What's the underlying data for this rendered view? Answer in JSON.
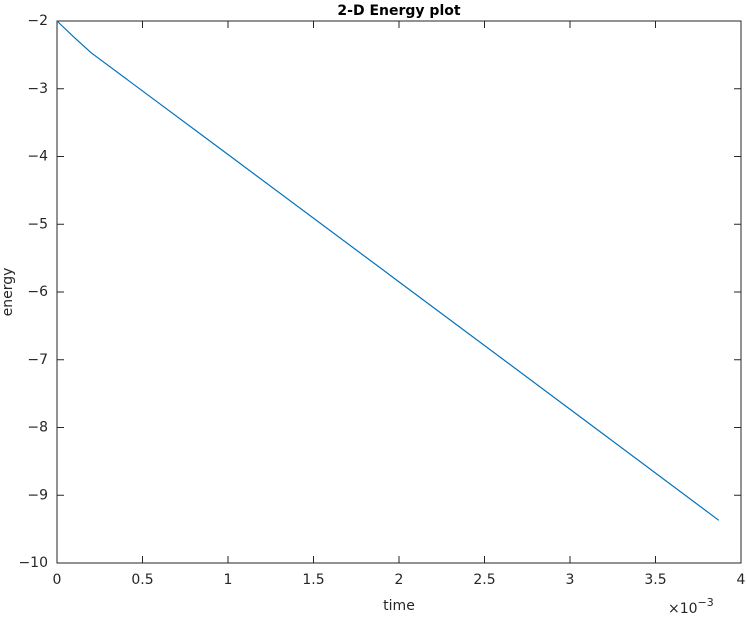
{
  "chart_data": {
    "type": "line",
    "title": "2-D Energy plot",
    "xlabel": "time",
    "ylabel": "energy",
    "x_multiplier": {
      "base": "×10",
      "exponent": "−3"
    },
    "x": [
      0,
      0.1,
      0.2,
      1,
      2,
      3,
      3.87
    ],
    "series": [
      {
        "name": "energy",
        "color": "#0072bd",
        "values": [
          -2,
          -2.24,
          -2.47,
          -3.97,
          -5.85,
          -7.73,
          -9.37
        ]
      }
    ],
    "xlim": [
      0,
      4
    ],
    "xticks": [
      0,
      0.5,
      1,
      1.5,
      2,
      2.5,
      3,
      3.5,
      4
    ],
    "ylim": [
      -10,
      -2
    ],
    "yticks": [
      {
        "value": -10,
        "label": "−10"
      },
      {
        "value": -9,
        "label": "−9"
      },
      {
        "value": -8,
        "label": "−8"
      },
      {
        "value": -7,
        "label": "−7"
      },
      {
        "value": -6,
        "label": "−6"
      },
      {
        "value": -5,
        "label": "−5"
      },
      {
        "value": -4,
        "label": "−4"
      },
      {
        "value": -3,
        "label": "−3"
      },
      {
        "value": -2,
        "label": "−2"
      }
    ],
    "grid": false
  }
}
